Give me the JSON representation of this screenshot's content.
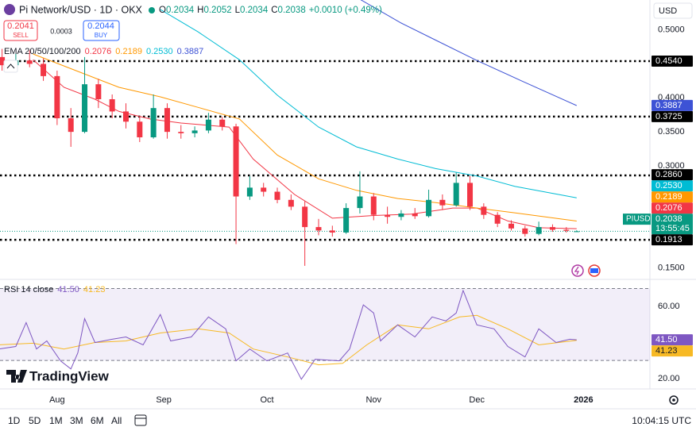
{
  "header": {
    "symbol": "Pi Network/USD · 1D · OKX",
    "ohlc": [
      {
        "key": "O",
        "value": "0.2034"
      },
      {
        "key": "H",
        "value": "0.2052"
      },
      {
        "key": "L",
        "value": "0.2034"
      },
      {
        "key": "C",
        "value": "0.2038"
      }
    ],
    "change": "+0.0010 (+0.49%)",
    "sell": {
      "price": "0.2041",
      "label": "SELL"
    },
    "spread": "0.0003",
    "buy": {
      "price": "0.2044",
      "label": "BUY"
    },
    "currency": "USD"
  },
  "chart_data": {
    "type": "candlestick",
    "ema_title": "EMA 20/50/100/200",
    "up_color": "#089981",
    "down_color": "#f23645",
    "x": [
      -16,
      -12,
      -8,
      -4,
      0,
      4,
      8,
      12,
      16,
      20,
      24,
      28,
      32,
      36,
      40,
      44,
      48,
      52,
      56,
      60,
      64,
      68,
      72,
      76,
      80,
      84,
      88,
      92,
      96,
      100,
      104,
      108,
      112,
      116,
      120,
      124,
      128,
      132,
      136,
      140,
      144,
      148,
      151
    ],
    "open": [
      0.46,
      0.448,
      0.455,
      0.45,
      0.432,
      0.37,
      0.35,
      0.42,
      0.398,
      0.38,
      0.365,
      0.342,
      0.385,
      0.35,
      0.348,
      0.352,
      0.368,
      0.358,
      0.255,
      0.268,
      0.262,
      0.25,
      0.24,
      0.21,
      0.205,
      0.202,
      0.238,
      0.255,
      0.228,
      0.225,
      0.23,
      0.226,
      0.25,
      0.242,
      0.275,
      0.24,
      0.228,
      0.215,
      0.208,
      0.2,
      0.21,
      0.206,
      0.2034
    ],
    "high": [
      0.472,
      0.465,
      0.47,
      0.458,
      0.44,
      0.385,
      0.46,
      0.428,
      0.405,
      0.392,
      0.372,
      0.405,
      0.392,
      0.36,
      0.358,
      0.378,
      0.372,
      0.362,
      0.285,
      0.275,
      0.268,
      0.258,
      0.248,
      0.222,
      0.212,
      0.245,
      0.292,
      0.26,
      0.24,
      0.235,
      0.238,
      0.265,
      0.258,
      0.29,
      0.285,
      0.245,
      0.232,
      0.22,
      0.212,
      0.218,
      0.214,
      0.21,
      0.2052
    ],
    "low": [
      0.44,
      0.44,
      0.445,
      0.425,
      0.36,
      0.328,
      0.348,
      0.385,
      0.37,
      0.355,
      0.335,
      0.34,
      0.34,
      0.34,
      0.342,
      0.348,
      0.352,
      0.185,
      0.25,
      0.255,
      0.245,
      0.235,
      0.153,
      0.198,
      0.196,
      0.2,
      0.23,
      0.22,
      0.215,
      0.22,
      0.222,
      0.224,
      0.235,
      0.24,
      0.235,
      0.222,
      0.21,
      0.205,
      0.196,
      0.198,
      0.203,
      0.202,
      0.2034
    ],
    "close": [
      0.448,
      0.455,
      0.45,
      0.432,
      0.37,
      0.35,
      0.42,
      0.398,
      0.38,
      0.365,
      0.342,
      0.385,
      0.35,
      0.348,
      0.352,
      0.368,
      0.358,
      0.255,
      0.268,
      0.262,
      0.25,
      0.24,
      0.21,
      0.205,
      0.202,
      0.238,
      0.255,
      0.228,
      0.225,
      0.23,
      0.226,
      0.25,
      0.242,
      0.275,
      0.24,
      0.228,
      0.215,
      0.208,
      0.2,
      0.21,
      0.206,
      0.2045,
      0.2038
    ],
    "series": [
      {
        "color": "#f23645",
        "x": [
          -7,
          2,
          11,
          18,
          27,
          36,
          50,
          57,
          69,
          80,
          92,
          103,
          115,
          122,
          131,
          140,
          151
        ],
        "values": [
          0.456,
          0.4155,
          0.398,
          0.38,
          0.369,
          0.363,
          0.357,
          0.31,
          0.258,
          0.223,
          0.227,
          0.229,
          0.238,
          0.238,
          0.219,
          0.209,
          0.2076
        ],
        "value_labels": [
          null,
          null,
          null,
          null,
          null,
          null,
          null,
          null,
          null,
          null,
          null,
          null,
          null,
          null,
          null,
          null,
          "0.2076"
        ]
      },
      {
        "color": "#ff9800",
        "x": [
          -7,
          6,
          18,
          30,
          41,
          53,
          64,
          76,
          87,
          99,
          110,
          122,
          133,
          151
        ],
        "values": [
          0.4645,
          0.439,
          0.4155,
          0.4015,
          0.386,
          0.369,
          0.316,
          0.281,
          0.264,
          0.252,
          0.246,
          0.238,
          0.231,
          0.2189
        ],
        "value_labels": [
          null,
          null,
          null,
          null,
          null,
          null,
          null,
          null,
          null,
          null,
          null,
          null,
          null,
          "0.2189"
        ]
      },
      {
        "color": "#00bcd4",
        "x": [
          30,
          41,
          53,
          64,
          76,
          87,
          99,
          110,
          122,
          133,
          151
        ],
        "values": [
          0.53,
          0.497,
          0.456,
          0.404,
          0.357,
          0.328,
          0.31,
          0.296,
          0.285,
          0.27,
          0.253
        ],
        "value_labels": [
          null,
          null,
          null,
          null,
          null,
          null,
          null,
          null,
          null,
          null,
          "0.2530"
        ]
      },
      {
        "color": "#3d52d5",
        "x": [
          88,
          100,
          110,
          122,
          135,
          151
        ],
        "values": [
          0.545,
          0.51,
          0.485,
          0.455,
          0.425,
          0.3887
        ],
        "value_labels": [
          null,
          null,
          null,
          null,
          null,
          "0.3887"
        ]
      }
    ],
    "xlim": [
      -16.6,
      172.3
    ],
    "xticks": [
      {
        "value": 0,
        "label": "Aug"
      },
      {
        "value": 31,
        "label": "Sep"
      },
      {
        "value": 61,
        "label": "Oct"
      },
      {
        "value": 92,
        "label": "Nov"
      },
      {
        "value": 122,
        "label": "Dec"
      },
      {
        "value": 153,
        "label": "2026"
      }
    ],
    "ylim": [
      0.1354,
      0.5439
    ],
    "yticks": [
      {
        "value": 0.5,
        "label": "0.5000"
      },
      {
        "value": 0.4,
        "label": "0.4000"
      },
      {
        "value": 0.35,
        "label": "0.3500"
      },
      {
        "value": 0.3,
        "label": "0.3000"
      },
      {
        "value": 0.15,
        "label": "0.1500"
      }
    ],
    "levels": [
      {
        "value": 0.454,
        "label": "0.4540"
      },
      {
        "value": 0.3725,
        "label": "0.3725"
      },
      {
        "value": 0.286,
        "label": "0.2860"
      },
      {
        "value": 0.1913,
        "label": "0.1913"
      }
    ],
    "last_price": {
      "value": 0.2038,
      "label": "0.2038",
      "countdown": "13:55:45",
      "symbol": "PIUSD",
      "color": "#089981"
    },
    "rsi": {
      "title": "RSI 14 close",
      "color": "#7e57c2",
      "ma_color": "#f7b924",
      "x": [
        -17,
        -12,
        -9,
        -6,
        -3,
        1,
        4,
        6,
        8,
        11,
        16,
        20,
        25,
        30,
        33,
        39,
        44,
        49,
        52,
        56,
        61,
        67,
        71,
        75,
        82,
        85,
        89,
        92,
        94,
        99,
        104,
        109,
        113,
        116,
        118,
        122,
        127,
        131,
        136,
        140,
        145,
        149,
        151
      ],
      "values": [
        36.4,
        37.8,
        51.1,
        36.4,
        40.9,
        29.8,
        25.3,
        34.2,
        53.3,
        40,
        41.8,
        43.1,
        38.7,
        55.6,
        40.9,
        43.1,
        54.2,
        47.6,
        29.8,
        36.4,
        29.8,
        34.2,
        19.6,
        30.7,
        29.8,
        36.4,
        60.9,
        56.4,
        40.9,
        49.8,
        43.1,
        54.2,
        52,
        56.4,
        68.9,
        49.8,
        47.6,
        37.8,
        32,
        47.6,
        40,
        41.8,
        41.5
      ],
      "value_labels": [
        null,
        null,
        null,
        null,
        null,
        null,
        null,
        null,
        null,
        null,
        null,
        null,
        null,
        null,
        null,
        null,
        null,
        null,
        null,
        null,
        null,
        null,
        null,
        null,
        null,
        null,
        null,
        null,
        null,
        null,
        null,
        null,
        null,
        null,
        null,
        null,
        null,
        null,
        null,
        null,
        null,
        null,
        "41.50"
      ],
      "ma_x": [
        -17,
        -7,
        2,
        11,
        20,
        30,
        41,
        50,
        57,
        67,
        76,
        83,
        90,
        99,
        108,
        117,
        122,
        131,
        140,
        151
      ],
      "ma_values": [
        38.7,
        39.6,
        36.4,
        40,
        40.9,
        45.3,
        47.6,
        45.3,
        36.4,
        32,
        27.6,
        28.4,
        38.7,
        49.8,
        47.6,
        54.2,
        55.1,
        47.6,
        38.7,
        41.23
      ],
      "ma_value_labels": [
        null,
        null,
        null,
        null,
        null,
        null,
        null,
        null,
        null,
        null,
        null,
        null,
        null,
        null,
        null,
        null,
        null,
        null,
        null,
        "41.23"
      ],
      "bands": [
        70,
        30
      ],
      "ylim": [
        14.2,
        74.2
      ],
      "yticks": [
        {
          "value": 60,
          "label": "60.00"
        },
        {
          "value": 20,
          "label": "20.00"
        }
      ]
    }
  },
  "brand": "TradingView",
  "toolbar": {
    "ranges": [
      "1D",
      "5D",
      "1M",
      "3M",
      "6M",
      "All"
    ],
    "time": "10:04:15 UTC"
  }
}
